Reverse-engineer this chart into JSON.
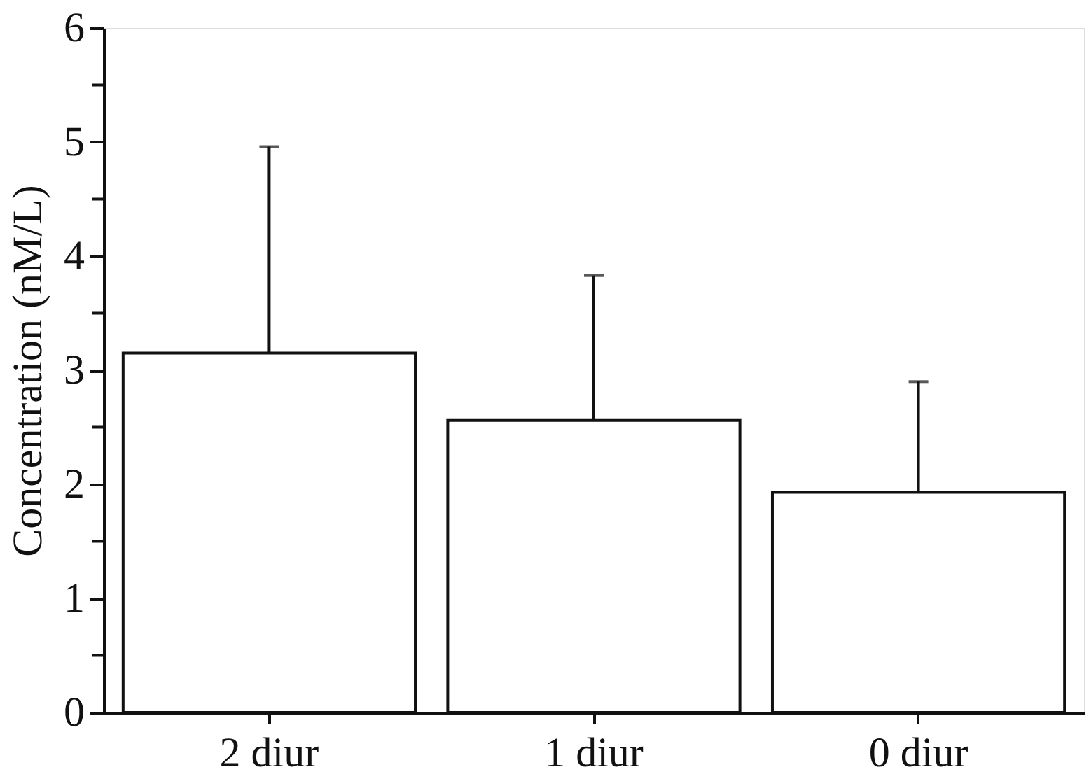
{
  "chart_data": {
    "type": "bar",
    "ylabel": "Concentration (nM/L)",
    "categories": [
      "2 diur",
      "1 diur",
      "0 diur"
    ],
    "values": [
      3.15,
      2.56,
      1.93
    ],
    "color": "#ffffff",
    "errors": [
      [
        3.15,
        4.96
      ],
      [
        2.56,
        3.83
      ],
      [
        1.93,
        2.9
      ]
    ],
    "ylim": [
      0,
      6
    ],
    "yticks": [
      0,
      {
        "value": 0.5,
        "label": null
      },
      1,
      {
        "value": 1.5,
        "label": null
      },
      2,
      {
        "value": 2.5,
        "label": null
      },
      3,
      {
        "value": 3.5,
        "label": null
      },
      4,
      {
        "value": 4.5,
        "label": null
      },
      5,
      {
        "value": 5.5,
        "label": null
      },
      6
    ],
    "grid": false
  }
}
